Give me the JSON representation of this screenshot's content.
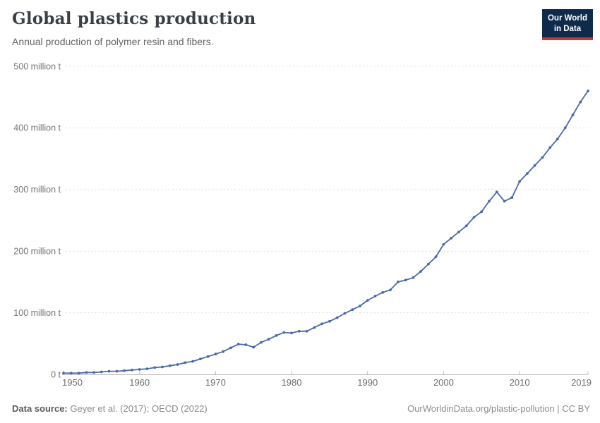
{
  "header": {
    "title": "Global plastics production",
    "subtitle": "Annual production of polymer resin and fibers.",
    "logo": {
      "line1": "Our World",
      "line2": "in Data",
      "bg_color": "#0f2b4c",
      "stripe_color": "#d0342c"
    }
  },
  "footer": {
    "datasource_label": "Data source:",
    "datasource_value": "Geyer et al. (2017); OECD (2022)",
    "credit": "OurWorldinData.org/plastic-pollution | CC BY"
  },
  "chart_data": {
    "type": "line",
    "title": "Global plastics production",
    "unit": "million t",
    "line_color": "#4a6aa5",
    "grid": "horizontal-dashed",
    "legend": "none",
    "ylim": [
      0,
      500
    ],
    "yticks": [
      0,
      100,
      200,
      300,
      400,
      500
    ],
    "ytick_labels": [
      "0 t",
      "100 million t",
      "200 million t",
      "300 million t",
      "400 million t",
      "500 million t"
    ],
    "xticks": [
      1950,
      1960,
      1970,
      1980,
      1990,
      2000,
      2010,
      2019
    ],
    "x": [
      1950,
      1951,
      1952,
      1953,
      1954,
      1955,
      1956,
      1957,
      1958,
      1959,
      1960,
      1961,
      1962,
      1963,
      1964,
      1965,
      1966,
      1967,
      1968,
      1969,
      1970,
      1971,
      1972,
      1973,
      1974,
      1975,
      1976,
      1977,
      1978,
      1979,
      1980,
      1981,
      1982,
      1983,
      1984,
      1985,
      1986,
      1987,
      1988,
      1989,
      1990,
      1991,
      1992,
      1993,
      1994,
      1995,
      1996,
      1997,
      1998,
      1999,
      2000,
      2001,
      2002,
      2003,
      2004,
      2005,
      2006,
      2007,
      2008,
      2009,
      2010,
      2011,
      2012,
      2013,
      2014,
      2015,
      2016,
      2017,
      2018,
      2019
    ],
    "values": [
      2,
      2,
      2,
      3,
      3,
      4,
      5,
      5,
      6,
      7,
      8,
      9,
      11,
      12,
      14,
      16,
      19,
      21,
      25,
      29,
      33,
      37,
      43,
      49,
      48,
      44,
      52,
      57,
      63,
      68,
      67,
      70,
      70,
      76,
      82,
      86,
      92,
      99,
      105,
      111,
      120,
      127,
      133,
      137,
      150,
      153,
      157,
      167,
      179,
      191,
      211,
      221,
      231,
      241,
      255,
      264,
      281,
      296,
      281,
      287,
      313,
      326,
      339,
      352,
      368,
      382,
      400,
      421,
      442,
      460
    ]
  },
  "style": {
    "gridline_color": "#dcdcdc",
    "axis_color": "#bdbdbd",
    "ytick_text_color": "#757575",
    "xtick_text_color": "#6e6e6e"
  }
}
